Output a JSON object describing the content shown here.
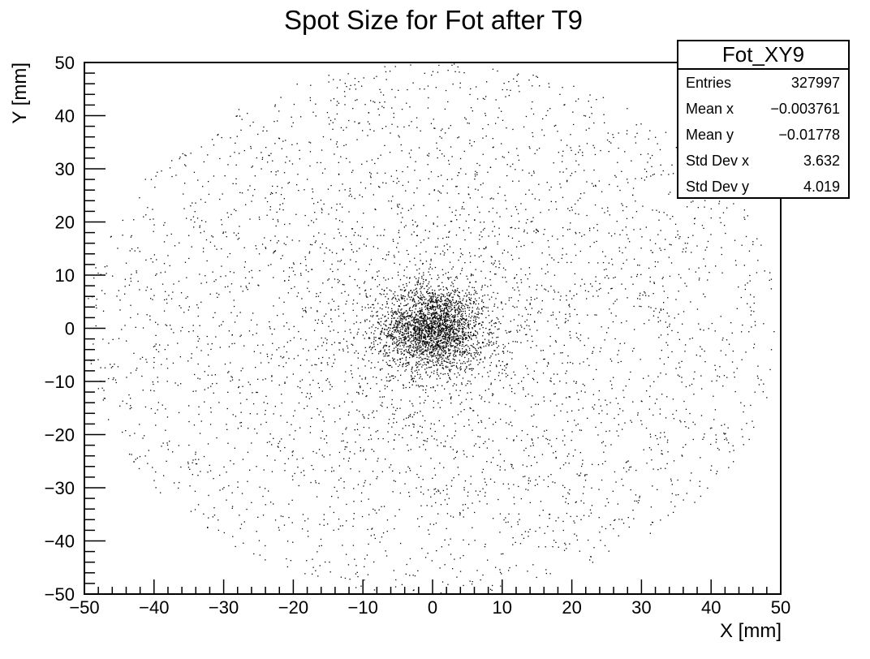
{
  "chart_data": {
    "type": "scatter",
    "title": "Spot Size for Fot after T9",
    "xlabel": "X [mm]",
    "ylabel": "Y [mm]",
    "xlim": [
      -50,
      50
    ],
    "ylim": [
      -50,
      50
    ],
    "x_ticks": [
      "−50",
      "−40",
      "−30",
      "−20",
      "−10",
      "0",
      "10",
      "20",
      "30",
      "40",
      "50"
    ],
    "y_ticks": [
      "−50",
      "−40",
      "−30",
      "−20",
      "−10",
      "0",
      "10",
      "20",
      "30",
      "40",
      "50"
    ],
    "x_tick_values": [
      -50,
      -40,
      -30,
      -20,
      -10,
      0,
      10,
      20,
      30,
      40,
      50
    ],
    "y_tick_values": [
      -50,
      -40,
      -30,
      -20,
      -10,
      0,
      10,
      20,
      30,
      40,
      50
    ],
    "grid": false,
    "series": [
      {
        "distribution": "dense core near origin, sparse halo out to radius ~50",
        "mean_x": -0.003761,
        "mean_y": -0.01778,
        "std_x": 3.632,
        "std_y": 4.019,
        "halo_radius": 50
      }
    ],
    "stats": {
      "name": "Fot_XY9",
      "rows": [
        {
          "label": "Entries",
          "value": "327997"
        },
        {
          "label": "Mean x",
          "value": "−0.003761"
        },
        {
          "label": "Mean y",
          "value": "−0.01778"
        },
        {
          "label": "Std Dev x",
          "value": "3.632"
        },
        {
          "label": "Std Dev y",
          "value": "4.019"
        }
      ]
    }
  }
}
